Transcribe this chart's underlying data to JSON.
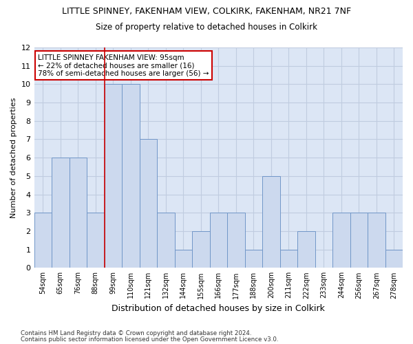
{
  "title": "LITTLE SPINNEY, FAKENHAM VIEW, COLKIRK, FAKENHAM, NR21 7NF",
  "subtitle": "Size of property relative to detached houses in Colkirk",
  "xlabel": "Distribution of detached houses by size in Colkirk",
  "ylabel": "Number of detached properties",
  "categories": [
    "54sqm",
    "65sqm",
    "76sqm",
    "88sqm",
    "99sqm",
    "110sqm",
    "121sqm",
    "132sqm",
    "144sqm",
    "155sqm",
    "166sqm",
    "177sqm",
    "188sqm",
    "200sqm",
    "211sqm",
    "222sqm",
    "233sqm",
    "244sqm",
    "256sqm",
    "267sqm",
    "278sqm"
  ],
  "values": [
    3,
    6,
    6,
    3,
    10,
    10,
    7,
    3,
    1,
    2,
    3,
    3,
    1,
    5,
    1,
    2,
    0,
    3,
    3,
    3,
    1
  ],
  "bar_color": "#ccd9ee",
  "bar_edge_color": "#7096c8",
  "highlight_index": 4,
  "highlight_line_color": "#cc0000",
  "ylim": [
    0,
    12
  ],
  "yticks": [
    0,
    1,
    2,
    3,
    4,
    5,
    6,
    7,
    8,
    9,
    10,
    11,
    12
  ],
  "annotation_title": "LITTLE SPINNEY FAKENHAM VIEW: 95sqm",
  "annotation_line1": "← 22% of detached houses are smaller (16)",
  "annotation_line2": "78% of semi-detached houses are larger (56) →",
  "annotation_box_color": "#ffffff",
  "annotation_box_edge": "#cc0000",
  "grid_color": "#c0cce0",
  "background_color": "#dce6f5",
  "footer_line1": "Contains HM Land Registry data © Crown copyright and database right 2024.",
  "footer_line2": "Contains public sector information licensed under the Open Government Licence v3.0."
}
